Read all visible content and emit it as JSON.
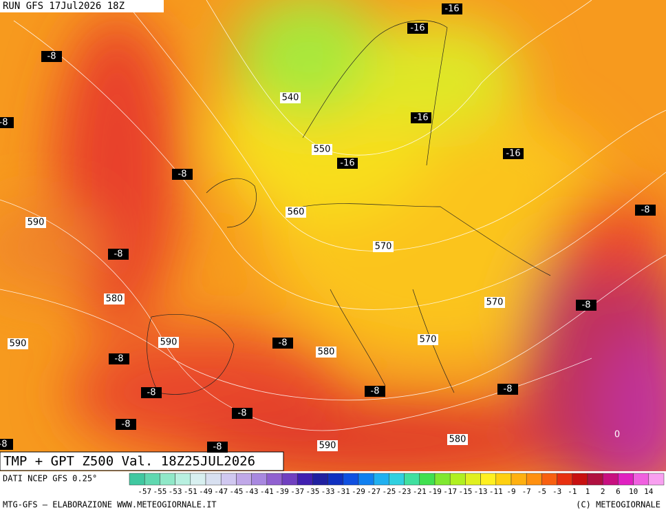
{
  "header": "RUN GFS 17Jul2026 18Z",
  "temperature_labels": [
    -16,
    -16,
    -16,
    -16,
    -16,
    -8,
    -8,
    -8,
    -8,
    -8,
    -8,
    -8,
    -8,
    -8,
    -8,
    -8,
    -8,
    -8,
    -8,
    -8,
    0
  ],
  "height_labels": [
    540,
    550,
    560,
    570,
    570,
    570,
    580,
    580,
    580,
    590,
    590,
    590,
    590
  ],
  "title": "TMP + GPT Z500 Val. 18Z25JUL2026",
  "source": "DATI NCEP GFS 0.25°",
  "legend": {
    "values": [
      -57,
      -55,
      -53,
      -51,
      -49,
      -47,
      -45,
      -43,
      -41,
      -39,
      -37,
      -35,
      -33,
      -31,
      -29,
      -27,
      -25,
      -23,
      -21,
      -19,
      -17,
      -15,
      -13,
      -11,
      -9,
      -7,
      -5,
      -3,
      -1,
      1,
      2,
      6,
      10,
      14
    ]
  },
  "footer_left": "MTG-GFS – ELABORAZIONE WWW.METEOGIORNALE.IT",
  "footer_right": "(C) METEOGIORNALE"
}
